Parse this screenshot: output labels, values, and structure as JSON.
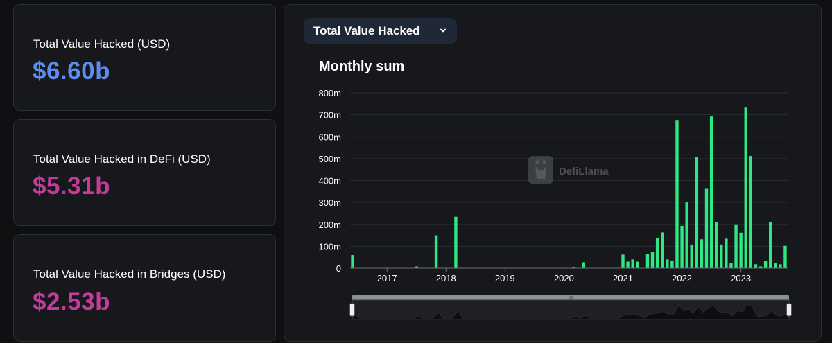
{
  "stats": [
    {
      "label": "Total Value Hacked (USD)",
      "value": "$6.60b",
      "color": "#5b8def"
    },
    {
      "label": "Total Value Hacked in DeFi (USD)",
      "value": "$5.31b",
      "color": "#c53b9a"
    },
    {
      "label": "Total Value Hacked in Bridges (USD)",
      "value": "$2.53b",
      "color": "#c53b9a"
    }
  ],
  "dropdown": {
    "label": "Total Value Hacked"
  },
  "watermark": {
    "text": "DefiLlama"
  },
  "colors": {
    "bar": "#2ee884",
    "background": "#17181c",
    "grid": "#2a2c31",
    "axis_text": "#ffffff"
  },
  "chart_data": {
    "type": "bar",
    "title": "Monthly sum",
    "xlabel": "",
    "ylabel": "",
    "ylim": [
      0,
      800
    ],
    "y_unit": "m",
    "yticks": [
      "0",
      "100m",
      "200m",
      "300m",
      "400m",
      "500m",
      "600m",
      "700m",
      "800m"
    ],
    "xticks": [
      "2017",
      "2018",
      "2019",
      "2020",
      "2021",
      "2022",
      "2023"
    ],
    "grid": true,
    "x_start": "2016-06",
    "series": [
      {
        "values": [
          60,
          0,
          0,
          0,
          0,
          0,
          0,
          0,
          0,
          0,
          0,
          0,
          0,
          8,
          0,
          0,
          0,
          150,
          0,
          0,
          0,
          235,
          0,
          0,
          0,
          0,
          0,
          0,
          0,
          0,
          0,
          0,
          0,
          0,
          0,
          0,
          0,
          0,
          0,
          0,
          0,
          0,
          0,
          0,
          0,
          4,
          0,
          27,
          0,
          0,
          0,
          0,
          0,
          0,
          0,
          62,
          30,
          40,
          30,
          0,
          65,
          75,
          137,
          163,
          40,
          35,
          676,
          193,
          300,
          108,
          508,
          132,
          362,
          692,
          210,
          108,
          135,
          22,
          200,
          162,
          733,
          512,
          18,
          8,
          32,
          212,
          22,
          18,
          102
        ]
      }
    ],
    "navigator": {
      "type": "area",
      "position": "bottom"
    }
  }
}
